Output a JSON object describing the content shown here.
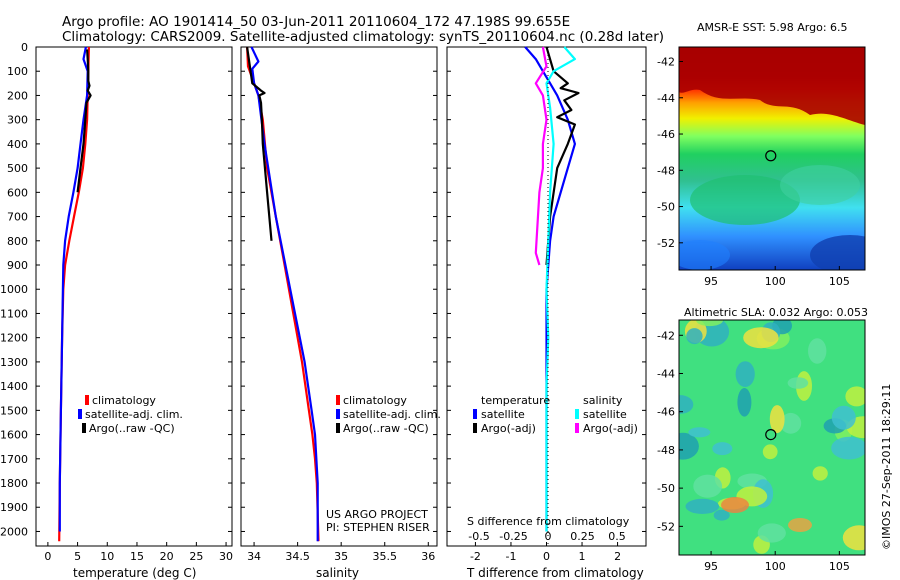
{
  "title_line1": "Argo profile: AO 1901414_50 03-Jun-2011 20110604_172 47.198S 99.655E",
  "title_line2": "Climatology: CARS2009. Satellite-adjusted climatology: synTS_20110604.nc (0.28d later)",
  "credit": "US ARGO PROJECT",
  "pi": "PI: STEPHEN RISER",
  "stamp": "©IMOS 27-Sep-2011 18:29:11",
  "colors": {
    "climatology": "#ff0000",
    "satellite": "#0000ff",
    "argo": "#000000",
    "sal_sat": "#00ffff",
    "sal_argo": "#ff00ff"
  },
  "chart_data": [
    {
      "type": "line",
      "xlabel": "temperature (deg C)",
      "xlim": [
        -2,
        31
      ],
      "xticks": [
        0,
        5,
        10,
        15,
        20,
        25,
        30
      ],
      "ylim": [
        2060,
        0
      ],
      "yticks": [
        0,
        100,
        200,
        300,
        400,
        500,
        600,
        700,
        800,
        900,
        1000,
        1100,
        1200,
        1300,
        1400,
        1500,
        1600,
        1700,
        1800,
        1900,
        2000
      ],
      "legend": [
        "climatology",
        "satellite-adj. clim.",
        "Argo(..raw -QC)"
      ],
      "series": [
        {
          "name": "climatology",
          "color": "#ff0000",
          "x": [
            6.9,
            6.8,
            6.7,
            6.6,
            6.3,
            5.9,
            5.2,
            4.4,
            3.6,
            2.9,
            2.6,
            2.4,
            2.2,
            2.0,
            1.9
          ],
          "y": [
            0,
            100,
            200,
            300,
            400,
            500,
            600,
            700,
            800,
            900,
            1000,
            1200,
            1500,
            1800,
            2040
          ]
        },
        {
          "name": "satellite-adj. clim.",
          "color": "#0000ff",
          "x": [
            6.4,
            6.0,
            6.7,
            6.6,
            6.0,
            5.5,
            5.0,
            4.3,
            3.5,
            2.9,
            2.6,
            2.4,
            2.2,
            2.0,
            2.0
          ],
          "y": [
            0,
            50,
            100,
            200,
            300,
            400,
            500,
            600,
            700,
            800,
            900,
            1200,
            1500,
            1800,
            2000
          ]
        },
        {
          "name": "Argo(..raw -QC)",
          "color": "#000000",
          "x": [
            6.6,
            6.7,
            6.8,
            6.8,
            7.0,
            6.7,
            7.2,
            6.5,
            6.3,
            6.0,
            5.5,
            5.0
          ],
          "y": [
            10,
            50,
            100,
            140,
            160,
            180,
            200,
            230,
            300,
            400,
            500,
            600
          ]
        }
      ]
    },
    {
      "type": "line",
      "xlabel": "salinity",
      "xlim": [
        33.85,
        36.1
      ],
      "xticks": [
        34,
        34.5,
        35,
        35.5,
        36
      ],
      "ylim": [
        2060,
        0
      ],
      "legend": [
        "climatology",
        "satellite-adj. clim.",
        "Argo(..raw -QC)"
      ],
      "series": [
        {
          "name": "climatology",
          "color": "#ff0000",
          "x": [
            33.92,
            33.93,
            34.0,
            34.05,
            34.1,
            34.15,
            34.25,
            34.35,
            34.45,
            34.55,
            34.63,
            34.67,
            34.7,
            34.72,
            34.74
          ],
          "y": [
            0,
            80,
            150,
            200,
            300,
            500,
            700,
            900,
            1100,
            1300,
            1500,
            1600,
            1700,
            1800,
            2040
          ]
        },
        {
          "name": "satellite-adj. clim.",
          "color": "#0000ff",
          "x": [
            33.97,
            34.05,
            33.98,
            34.0,
            34.05,
            34.12,
            34.25,
            34.36,
            34.47,
            34.58,
            34.66,
            34.7,
            34.73,
            34.73
          ],
          "y": [
            0,
            60,
            90,
            150,
            200,
            400,
            700,
            900,
            1100,
            1300,
            1500,
            1600,
            1800,
            2040
          ]
        },
        {
          "name": "Argo(..raw -QC)",
          "color": "#000000",
          "x": [
            33.92,
            33.98,
            34.08,
            34.12,
            34.06,
            34.08,
            34.09,
            34.1,
            34.15,
            34.2
          ],
          "y": [
            0,
            150,
            180,
            190,
            200,
            230,
            300,
            400,
            600,
            800
          ]
        }
      ]
    },
    {
      "type": "line",
      "xlabel": "T difference from climatology",
      "xlabel2": "S difference from climatology",
      "xlim": [
        -2.8,
        2.8
      ],
      "xticks": [
        -2,
        -1,
        0,
        1,
        2
      ],
      "xticks2": [
        -0.5,
        -0.25,
        0,
        0.25,
        0.5
      ],
      "ylim": [
        2060,
        0
      ],
      "legend_temp_title": "temperature",
      "legend_sal_title": "salinity",
      "legend": [
        "satellite",
        "Argo(-adj)",
        "satellite",
        "Argo(-adj)"
      ],
      "series": [
        {
          "name": "satellite",
          "color": "#0000ff",
          "x": [
            -0.6,
            -0.3,
            -0.1,
            0.1,
            0.3,
            0.6,
            0.8,
            0.6,
            0.4,
            0.2,
            0.1,
            0.0,
            0.0,
            0.0
          ],
          "y": [
            0,
            50,
            100,
            150,
            200,
            300,
            400,
            500,
            600,
            700,
            800,
            1000,
            1500,
            2000
          ]
        },
        {
          "name": "Argo(-adj)",
          "color": "#000000",
          "x": [
            0.0,
            0.2,
            0.6,
            0.4,
            0.9,
            0.5,
            0.7,
            0.3,
            0.8,
            0.6,
            0.3,
            0.1,
            0.0
          ],
          "y": [
            0,
            100,
            150,
            170,
            190,
            220,
            260,
            290,
            320,
            400,
            500,
            700,
            900
          ]
        },
        {
          "name": "satellite",
          "color": "#00ffff",
          "x": [
            0.5,
            0.8,
            0.2,
            0.0,
            0.1,
            0.2,
            0.1,
            0.05,
            0.0,
            0.05,
            0.0,
            0.0,
            0.0,
            0.0
          ],
          "y": [
            0,
            50,
            100,
            150,
            250,
            400,
            600,
            800,
            1000,
            1200,
            1400,
            1600,
            1800,
            2000
          ]
        },
        {
          "name": "Argo(-adj)",
          "color": "#ff00ff",
          "x": [
            -0.1,
            0.0,
            -0.3,
            -0.1,
            0.0,
            -0.1,
            -0.1,
            -0.2,
            -0.3,
            -0.2
          ],
          "y": [
            0,
            80,
            150,
            200,
            300,
            400,
            500,
            600,
            850,
            900
          ]
        }
      ]
    },
    {
      "type": "heatmap",
      "title": "AMSR-E SST: 5.98 Argo: 6.5",
      "xlim": [
        92.5,
        107
      ],
      "xticks": [
        95,
        100,
        105
      ],
      "ylim": [
        -53.5,
        -41.2
      ],
      "yticks": [
        -42,
        -44,
        -46,
        -48,
        -50,
        -52
      ],
      "marker": [
        99.655,
        -47.198
      ]
    },
    {
      "type": "heatmap",
      "title": "Altimetric SLA: 0.032 Argo: 0.053",
      "xlim": [
        92.5,
        107
      ],
      "xticks": [
        95,
        100,
        105
      ],
      "ylim": [
        -53.5,
        -41.2
      ],
      "yticks": [
        -42,
        -44,
        -46,
        -48,
        -50,
        -52
      ],
      "marker": [
        99.655,
        -47.198
      ]
    }
  ]
}
